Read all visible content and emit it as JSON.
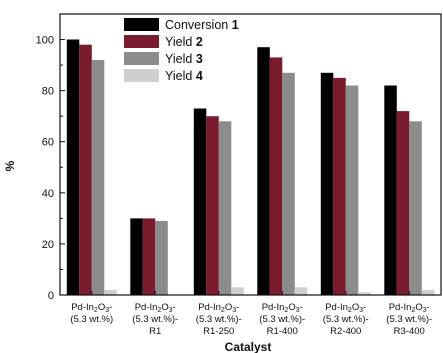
{
  "chart_data": {
    "type": "bar",
    "xlabel": "Catalyst",
    "ylabel": "%",
    "ylim": [
      0,
      110
    ],
    "yticks": [
      0,
      20,
      40,
      60,
      80,
      100
    ],
    "grid": false,
    "legend_placement": "top-center",
    "categories": [
      {
        "line1": "Pd-In",
        "sub": "2",
        "mid": "O",
        "sub2": "3",
        "tail": "-",
        "line2": "(5.3 wt.%)",
        "line3": ""
      },
      {
        "line1": "Pd-In",
        "sub": "2",
        "mid": "O",
        "sub2": "3",
        "tail": "-",
        "line2": "(5.3 wt.%)-",
        "line3": "R1"
      },
      {
        "line1": "Pd-In",
        "sub": "2",
        "mid": "O",
        "sub2": "3",
        "tail": "-",
        "line2": "(5.3 wt.%)-",
        "line3": "R1-250"
      },
      {
        "line1": "Pd-In",
        "sub": "2",
        "mid": "O",
        "sub2": "3",
        "tail": "-",
        "line2": "(5.3 wt.%)-",
        "line3": "R1-400"
      },
      {
        "line1": "Pd-In",
        "sub": "2",
        "mid": "O",
        "sub2": "3",
        "tail": "-",
        "line2": "(5.3 wt.%)-",
        "line3": "R2-400"
      },
      {
        "line1": "Pd-In",
        "sub": "2",
        "mid": "O",
        "sub2": "3",
        "tail": "-",
        "line2": "(5.3 wt.%)-",
        "line3": "R3-400"
      }
    ],
    "series": [
      {
        "name": "Conversion",
        "num": "1",
        "color": "#000000",
        "values": [
          100,
          30,
          73,
          97,
          87,
          82
        ]
      },
      {
        "name": "Yield",
        "num": "2",
        "color": "#7b1c2e",
        "values": [
          98,
          30,
          70,
          93,
          85,
          72
        ]
      },
      {
        "name": "Yield",
        "num": "3",
        "color": "#8c8c8c",
        "values": [
          92,
          29,
          68,
          87,
          82,
          68
        ]
      },
      {
        "name": "Yield",
        "num": "4",
        "color": "#cfcfcf",
        "values": [
          2,
          0,
          3,
          3,
          1,
          2
        ]
      }
    ]
  }
}
